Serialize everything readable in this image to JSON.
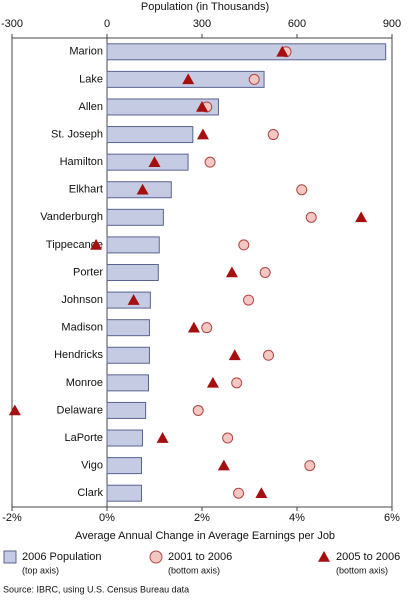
{
  "chart_data": {
    "type": "combo",
    "x2label": "Population (in Thousands)",
    "x2lim": [
      -300,
      900
    ],
    "x2ticks": [
      -300,
      0,
      300,
      600,
      900
    ],
    "xlabel": "Average Annual Change in Average Earnings per Job",
    "xlim": [
      -2,
      6
    ],
    "xticks": [
      {
        "value": -2,
        "label": "-2%"
      },
      {
        "value": 0,
        "label": "0%"
      },
      {
        "value": 2,
        "label": "2%"
      },
      {
        "value": 4,
        "label": "4%"
      },
      {
        "value": 6,
        "label": "6%"
      }
    ],
    "categories": [
      "Marion",
      "Lake",
      "Allen",
      "St. Joseph",
      "Hamilton",
      "Elkhart",
      "Vanderburgh",
      "Tippecanoe",
      "Porter",
      "Johnson",
      "Madison",
      "Hendricks",
      "Monroe",
      "Delaware",
      "LaPorte",
      "Vigo",
      "Clark"
    ],
    "series": [
      {
        "name": "2006 Population",
        "axis_note": "(top axis)",
        "axis": "x2",
        "mark": "bar",
        "color": "#c5cbe3",
        "values": [
          880,
          496,
          352,
          271,
          256,
          203,
          178,
          165,
          162,
          137,
          134,
          134,
          131,
          122,
          112,
          109,
          109
        ]
      },
      {
        "name": "2001 to 2006",
        "axis_note": "(bottom axis)",
        "axis": "x",
        "mark": "circle",
        "color": "#f4c7c3",
        "values": [
          3.77,
          3.1,
          2.1,
          3.5,
          2.17,
          4.1,
          4.3,
          2.88,
          3.33,
          2.98,
          2.1,
          3.4,
          2.73,
          1.92,
          2.54,
          4.27,
          2.77
        ]
      },
      {
        "name": "2005 to 2006",
        "axis_note": "(bottom axis)",
        "axis": "x",
        "mark": "triangle",
        "color": "#a50f0f",
        "values": [
          3.69,
          1.71,
          2.0,
          2.02,
          1.0,
          0.75,
          5.35,
          -0.23,
          2.63,
          0.56,
          1.83,
          2.69,
          2.23,
          -1.94,
          1.17,
          2.46,
          3.25
        ]
      }
    ],
    "source": "Source: IBRC, using U.S. Census Bureau data"
  }
}
